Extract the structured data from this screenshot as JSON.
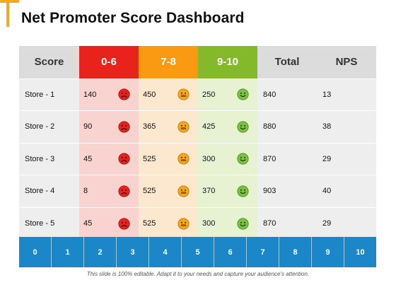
{
  "title": "Net Promoter Score Dashboard",
  "headers": {
    "score": "Score",
    "detractors": "0-6",
    "passives": "7-8",
    "promoters": "9-10",
    "total": "Total",
    "nps": "NPS"
  },
  "rows": [
    {
      "store": "Store - 1",
      "detractors": "140",
      "passives": "450",
      "promoters": "250",
      "total": "840",
      "nps": "13"
    },
    {
      "store": "Store - 2",
      "detractors": "90",
      "passives": "365",
      "promoters": "425",
      "total": "880",
      "nps": "38"
    },
    {
      "store": "Store - 3",
      "detractors": "45",
      "passives": "525",
      "promoters": "300",
      "total": "870",
      "nps": "29"
    },
    {
      "store": "Store - 4",
      "detractors": "8",
      "passives": "525",
      "promoters": "370",
      "total": "903",
      "nps": "40"
    },
    {
      "store": "Store - 5",
      "detractors": "45",
      "passives": "525",
      "promoters": "300",
      "total": "870",
      "nps": "29"
    }
  ],
  "scale": [
    "0",
    "1",
    "2",
    "3",
    "4",
    "5",
    "6",
    "7",
    "8",
    "9",
    "10"
  ],
  "footer": "This slide is 100% editable. Adapt it to your needs and capture your audience's attention.",
  "colors": {
    "accent": "#f7a81b",
    "detractors": "#e8231b",
    "passives": "#f99a12",
    "promoters": "#84b92c",
    "scale_bar": "#1b87c9"
  },
  "icons": {
    "detractors": "sad-face-icon",
    "passives": "neutral-face-icon",
    "promoters": "happy-face-icon"
  }
}
